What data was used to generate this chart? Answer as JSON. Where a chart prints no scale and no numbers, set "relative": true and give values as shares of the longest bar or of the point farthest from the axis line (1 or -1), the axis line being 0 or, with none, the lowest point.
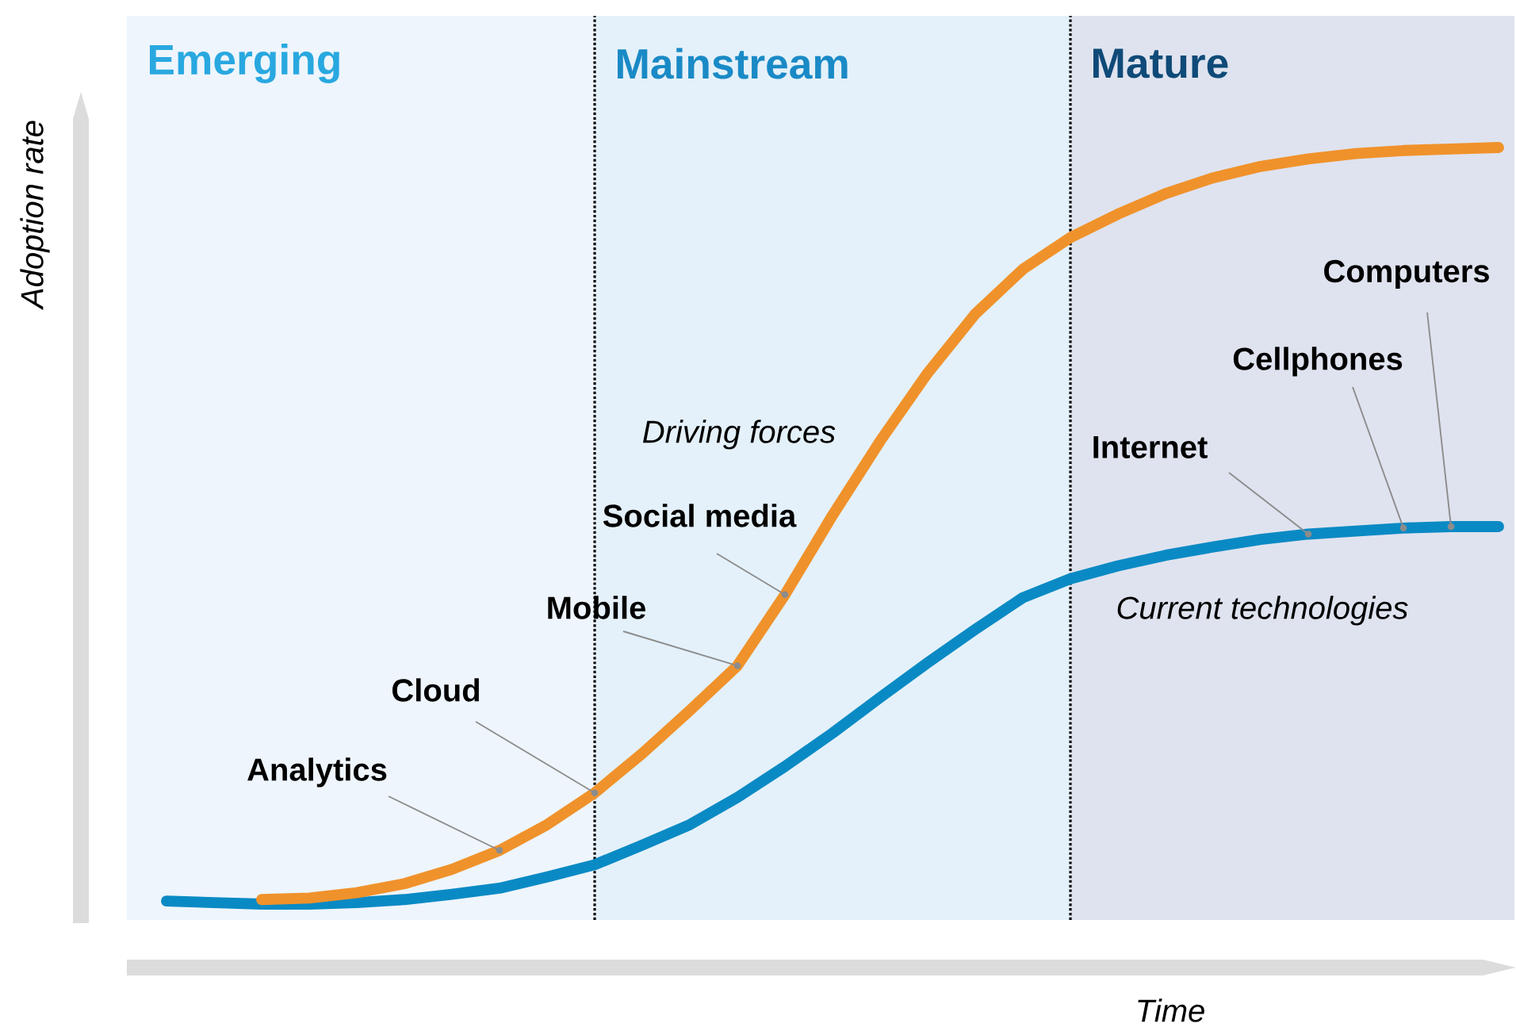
{
  "chart_data": {
    "type": "line",
    "relative": true,
    "xlabel": "Time",
    "ylabel": "Adoption rate",
    "categories": [
      null,
      null,
      null,
      null,
      null,
      null,
      null,
      null,
      null,
      null,
      null,
      null,
      null,
      null,
      null,
      null,
      null,
      null,
      null,
      null,
      null,
      null,
      null,
      null,
      null,
      null,
      null,
      null,
      null,
      null
    ],
    "series": [
      {
        "name": "Driving forces",
        "color": "#f0922b",
        "values": [
          null,
          null,
          null,
          0.006,
          0.008,
          0.015,
          0.027,
          0.046,
          0.071,
          0.105,
          0.147,
          0.199,
          0.256,
          0.315,
          0.409,
          0.514,
          0.612,
          0.702,
          0.78,
          0.839,
          0.881,
          0.912,
          0.939,
          0.96,
          0.975,
          0.985,
          0.992,
          0.996,
          0.998,
          1.0
        ]
      },
      {
        "name": "Current technologies",
        "color": "#0a8ac4",
        "values": [
          null,
          0.004,
          0.002,
          0.0,
          0.0,
          0.002,
          0.006,
          0.013,
          0.021,
          0.036,
          0.052,
          0.078,
          0.105,
          0.141,
          0.182,
          0.226,
          0.273,
          0.319,
          0.363,
          0.405,
          0.43,
          0.447,
          0.461,
          0.472,
          0.482,
          0.489,
          0.493,
          0.497,
          0.499,
          0.499
        ]
      }
    ],
    "annotations": [
      "Emerging",
      "Mainstream",
      "Mature",
      "Analytics",
      "Cloud",
      "Mobile",
      "Social media",
      "Internet",
      "Cellphones",
      "Computers"
    ]
  }
}
